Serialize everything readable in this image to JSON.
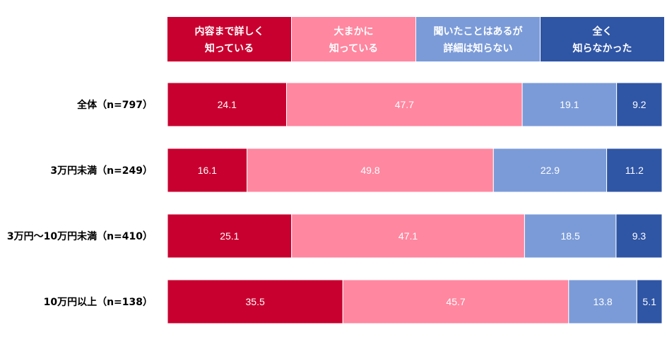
{
  "chart_data": {
    "type": "bar",
    "orientation": "horizontal",
    "stacked": true,
    "percent_stacked": true,
    "legend_position": "top",
    "categories": [
      "全体（n=797）",
      "3万円未満（n=249）",
      "3万円～10万円未満（n=410）",
      "10万円以上（n=138）"
    ],
    "series": [
      {
        "name": [
          "内容まで詳しく",
          "知っている"
        ],
        "color": "#c8002f",
        "values": [
          24.1,
          16.1,
          25.1,
          35.5
        ]
      },
      {
        "name": [
          "大まかに",
          "知っている"
        ],
        "color": "#ff87a0",
        "values": [
          47.7,
          49.8,
          47.1,
          45.7
        ]
      },
      {
        "name": [
          "聞いたことはあるが",
          "詳細は知らない"
        ],
        "color": "#7b9bd8",
        "values": [
          19.1,
          22.9,
          18.5,
          13.8
        ]
      },
      {
        "name": [
          "全く",
          "知らなかった"
        ],
        "color": "#2f55a5",
        "values": [
          9.2,
          11.2,
          9.3,
          5.1
        ]
      }
    ]
  }
}
